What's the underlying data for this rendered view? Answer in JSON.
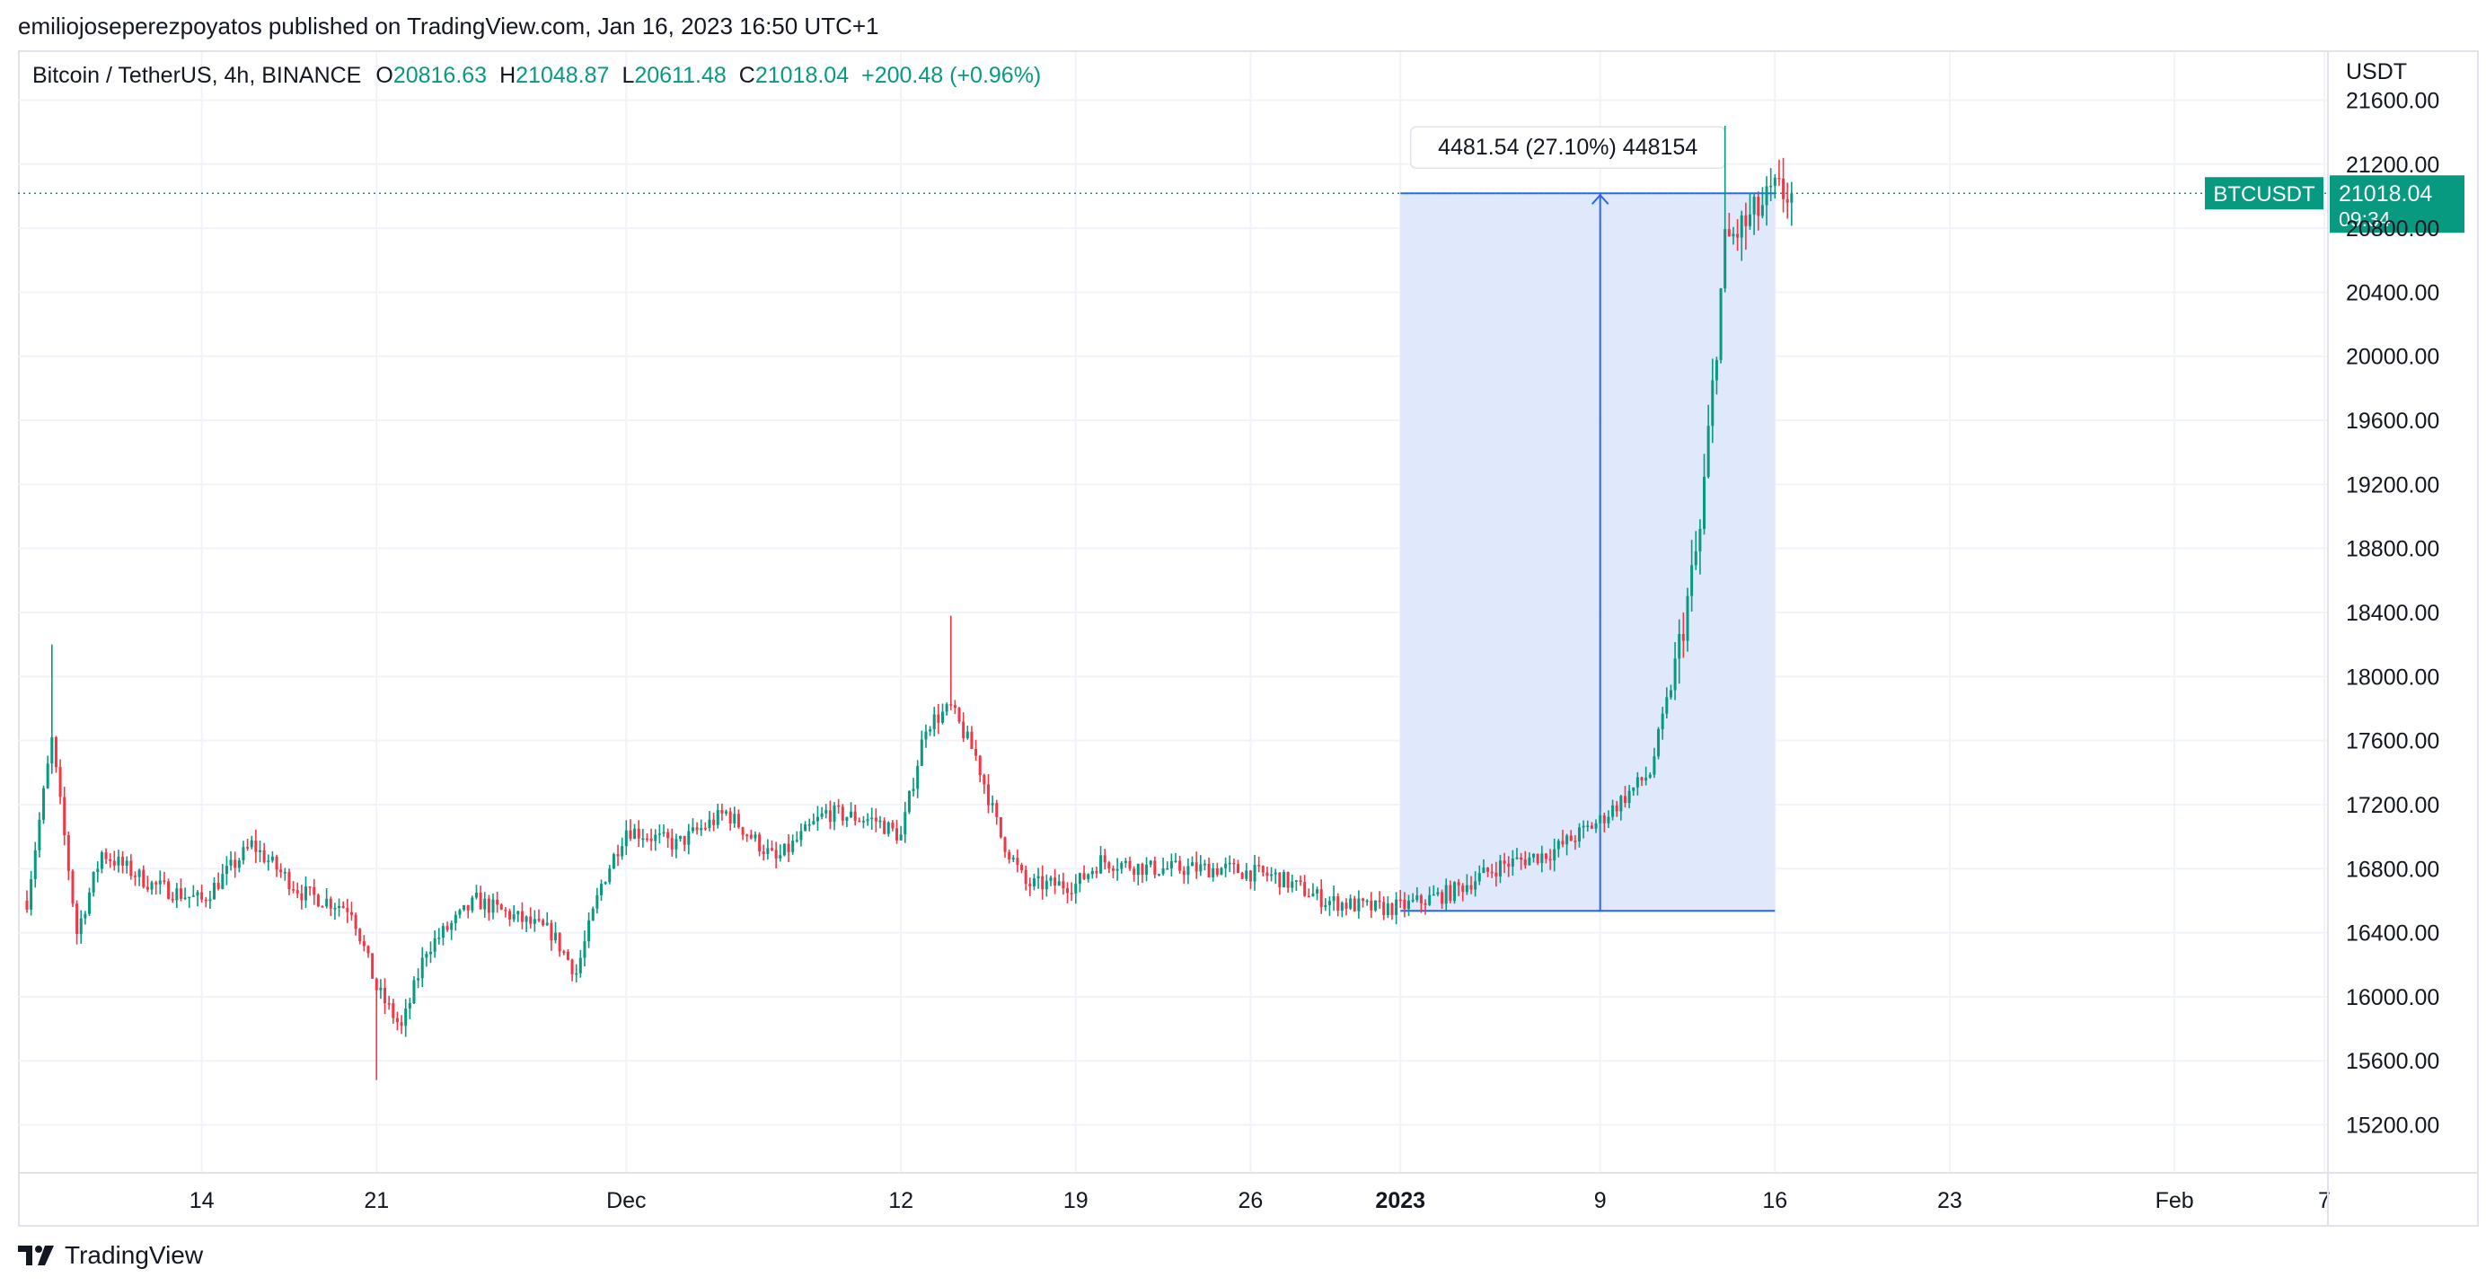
{
  "header": {
    "published_text": "emiliojoseperezpoyatos published on TradingView.com, Jan 16, 2023 16:50 UTC+1"
  },
  "legend": {
    "symbol": "Bitcoin / TetherUS, 4h, BINANCE",
    "open_label": "O",
    "open_value": "20816.63",
    "high_label": "H",
    "high_value": "21048.87",
    "low_label": "L",
    "low_value": "20611.48",
    "close_label": "C",
    "close_value": "21018.04",
    "change": "+200.48 (+0.96%)"
  },
  "footer": {
    "brand": "TradingView",
    "logo_icon": "tradingview-logo-icon"
  },
  "colors": {
    "up": "#089981",
    "down": "#f23645",
    "measure_fill": "#dde5fb",
    "measure_line": "#2962ff",
    "price_tag": "#089981",
    "grid": "#f0f3fa"
  },
  "chart_data": {
    "type": "candlestick",
    "currency_label": "USDT",
    "ylim": [
      14900,
      21900
    ],
    "y_ticks": [
      15200,
      15600,
      16000,
      16400,
      16800,
      17200,
      17600,
      18000,
      18400,
      18800,
      19200,
      19600,
      20000,
      20400,
      20800,
      21200,
      21600
    ],
    "y_tick_labels": [
      "15200.00",
      "15600.00",
      "16000.00",
      "16400.00",
      "16800.00",
      "17200.00",
      "17600.00",
      "18000.00",
      "18400.00",
      "18800.00",
      "19200.00",
      "19600.00",
      "20000.00",
      "20400.00",
      "20800.00",
      "21200.00",
      "21600.00"
    ],
    "x_ticks": [
      {
        "label": "14",
        "date": "2022-11-14",
        "bold": false
      },
      {
        "label": "21",
        "date": "2022-11-21",
        "bold": false
      },
      {
        "label": "Dec",
        "date": "2022-12-01",
        "bold": false
      },
      {
        "label": "12",
        "date": "2022-12-12",
        "bold": false
      },
      {
        "label": "19",
        "date": "2022-12-19",
        "bold": false
      },
      {
        "label": "26",
        "date": "2022-12-26",
        "bold": false
      },
      {
        "label": "2023",
        "date": "2023-01-01",
        "bold": true
      },
      {
        "label": "9",
        "date": "2023-01-09",
        "bold": false
      },
      {
        "label": "16",
        "date": "2023-01-16",
        "bold": false
      },
      {
        "label": "23",
        "date": "2023-01-23",
        "bold": false
      },
      {
        "label": "Feb",
        "date": "2023-02-01",
        "bold": false
      },
      {
        "label": "7",
        "date": "2023-02-07",
        "bold": false
      }
    ],
    "x_range": [
      "2022-11-07",
      "2023-02-07"
    ],
    "price_keypoints": [
      {
        "date": "2022-11-07",
        "price": 16600
      },
      {
        "date": "2022-11-08",
        "price": 17600
      },
      {
        "date": "2022-11-09",
        "price": 16400
      },
      {
        "date": "2022-11-10",
        "price": 16900
      },
      {
        "date": "2022-11-12",
        "price": 16700
      },
      {
        "date": "2022-11-14",
        "price": 16600
      },
      {
        "date": "2022-11-16",
        "price": 16950
      },
      {
        "date": "2022-11-18",
        "price": 16650
      },
      {
        "date": "2022-11-20",
        "price": 16550
      },
      {
        "date": "2022-11-21",
        "price": 16050
      },
      {
        "date": "2022-11-22",
        "price": 15800
      },
      {
        "date": "2022-11-23",
        "price": 16300
      },
      {
        "date": "2022-11-25",
        "price": 16600
      },
      {
        "date": "2022-11-28",
        "price": 16400
      },
      {
        "date": "2022-11-29",
        "price": 16150
      },
      {
        "date": "2022-11-30",
        "price": 16700
      },
      {
        "date": "2022-12-01",
        "price": 17050
      },
      {
        "date": "2022-12-03",
        "price": 16950
      },
      {
        "date": "2022-12-05",
        "price": 17150
      },
      {
        "date": "2022-12-07",
        "price": 16850
      },
      {
        "date": "2022-12-09",
        "price": 17150
      },
      {
        "date": "2022-12-11",
        "price": 17100
      },
      {
        "date": "2022-12-12",
        "price": 17000
      },
      {
        "date": "2022-12-13",
        "price": 17700
      },
      {
        "date": "2022-12-14",
        "price": 17800
      },
      {
        "date": "2022-12-15",
        "price": 17500
      },
      {
        "date": "2022-12-16",
        "price": 17000
      },
      {
        "date": "2022-12-17",
        "price": 16700
      },
      {
        "date": "2022-12-19",
        "price": 16700
      },
      {
        "date": "2022-12-20",
        "price": 16850
      },
      {
        "date": "2022-12-22",
        "price": 16800
      },
      {
        "date": "2022-12-25",
        "price": 16800
      },
      {
        "date": "2022-12-27",
        "price": 16750
      },
      {
        "date": "2022-12-29",
        "price": 16600
      },
      {
        "date": "2022-12-31",
        "price": 16550
      },
      {
        "date": "2023-01-01",
        "price": 16560
      },
      {
        "date": "2023-01-03",
        "price": 16650
      },
      {
        "date": "2023-01-05",
        "price": 16820
      },
      {
        "date": "2023-01-07",
        "price": 16900
      },
      {
        "date": "2023-01-09",
        "price": 17100
      },
      {
        "date": "2023-01-10",
        "price": 17250
      },
      {
        "date": "2023-01-11",
        "price": 17400
      },
      {
        "date": "2023-01-12",
        "price": 18050
      },
      {
        "date": "2023-01-13",
        "price": 18900
      },
      {
        "date": "2023-01-14",
        "price": 20700
      },
      {
        "date": "2023-01-15",
        "price": 20850
      },
      {
        "date": "2023-01-16",
        "price": 21018
      }
    ],
    "high_marker": {
      "date": "2022-11-08",
      "price": 18200
    },
    "dec_high_marker": {
      "date": "2022-12-14",
      "price": 18380
    },
    "jan_high_marker": {
      "date": "2023-01-14",
      "price": 21440
    },
    "low_marker": {
      "date": "2022-11-21",
      "price": 15480
    },
    "last_price_line": 21018.04,
    "price_tag": {
      "symbol": "BTCUSDT",
      "price": "21018.04",
      "countdown": "09:34"
    },
    "measure_tool": {
      "label": "4481.54 (27.10%) 448154",
      "start_date": "2023-01-01",
      "end_date": "2023-01-16",
      "low_price": 16536.5,
      "high_price": 21018.04,
      "arrow_date": "2023-01-09"
    }
  }
}
